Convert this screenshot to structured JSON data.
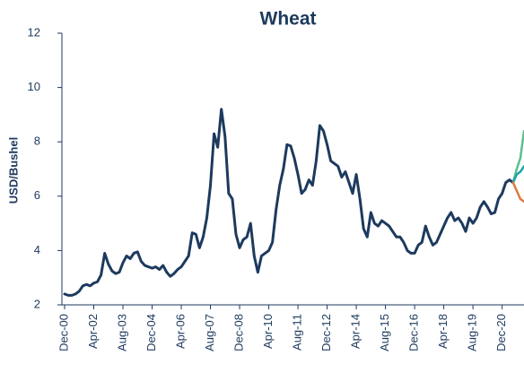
{
  "chart_data": {
    "type": "line",
    "title": "Wheat",
    "y_label": "USD/Bushel",
    "categories": [
      "Dec-00",
      null,
      null,
      null,
      null,
      null,
      null,
      null,
      "Apr-02",
      null,
      null,
      null,
      null,
      null,
      null,
      null,
      "Aug-03",
      null,
      null,
      null,
      null,
      null,
      null,
      null,
      "Dec-04",
      null,
      null,
      null,
      null,
      null,
      null,
      null,
      "Apr-06",
      null,
      null,
      null,
      null,
      null,
      null,
      null,
      "Aug-07",
      null,
      null,
      null,
      null,
      null,
      null,
      null,
      "Dec-08",
      null,
      null,
      null,
      null,
      null,
      null,
      null,
      "Apr-10",
      null,
      null,
      null,
      null,
      null,
      null,
      null,
      "Aug-11",
      null,
      null,
      null,
      null,
      null,
      null,
      null,
      "Dec-12",
      null,
      null,
      null,
      null,
      null,
      null,
      null,
      "Apr-14",
      null,
      null,
      null,
      null,
      null,
      null,
      null,
      "Aug-15",
      null,
      null,
      null,
      null,
      null,
      null,
      null,
      "Dec-16",
      null,
      null,
      null,
      null,
      null,
      null,
      null,
      "Apr-18",
      null,
      null,
      null,
      null,
      null,
      null,
      null,
      "Aug-19",
      null,
      null,
      null,
      null,
      null,
      null,
      null,
      "Dec-20",
      null,
      null,
      null,
      null,
      null,
      null
    ],
    "series": [
      {
        "color": "#1d3a5e",
        "width": 3,
        "values": [
          2.4,
          2.35,
          2.35,
          2.4,
          2.5,
          2.7,
          2.75,
          2.7,
          2.8,
          2.85,
          3.1,
          3.9,
          3.5,
          3.25,
          3.15,
          3.2,
          3.55,
          3.8,
          3.7,
          3.9,
          3.95,
          3.6,
          3.45,
          3.4,
          3.35,
          3.4,
          3.3,
          3.45,
          3.2,
          3.05,
          3.15,
          3.3,
          3.4,
          3.6,
          3.8,
          4.65,
          4.6,
          4.1,
          4.5,
          5.2,
          6.4,
          8.3,
          7.8,
          9.2,
          8.2,
          6.1,
          5.9,
          4.6,
          4.1,
          4.4,
          4.5,
          5.0,
          3.8,
          3.2,
          3.8,
          3.9,
          4.0,
          4.3,
          5.5,
          6.4,
          7.0,
          7.9,
          7.85,
          7.4,
          6.8,
          6.1,
          6.25,
          6.6,
          6.4,
          7.3,
          8.6,
          8.4,
          7.9,
          7.3,
          7.2,
          7.1,
          6.7,
          6.9,
          6.5,
          6.1,
          6.8,
          5.9,
          4.8,
          4.5,
          5.4,
          5.0,
          4.9,
          5.1,
          5.0,
          4.9,
          4.7,
          4.5,
          4.5,
          4.3,
          4.0,
          3.9,
          3.9,
          4.2,
          4.3,
          4.9,
          4.5,
          4.2,
          4.3,
          4.6,
          4.9,
          5.2,
          5.4,
          5.1,
          5.2,
          5.0,
          4.7,
          5.2,
          5.0,
          5.2,
          5.6,
          5.8,
          5.6,
          5.35,
          5.4,
          5.9,
          6.1,
          6.5,
          6.6,
          6.5,
          null,
          null,
          null
        ]
      },
      {
        "color": "#5cbf8f",
        "width": 2.5,
        "values": [
          null,
          null,
          null,
          null,
          null,
          null,
          null,
          null,
          null,
          null,
          null,
          null,
          null,
          null,
          null,
          null,
          null,
          null,
          null,
          null,
          null,
          null,
          null,
          null,
          null,
          null,
          null,
          null,
          null,
          null,
          null,
          null,
          null,
          null,
          null,
          null,
          null,
          null,
          null,
          null,
          null,
          null,
          null,
          null,
          null,
          null,
          null,
          null,
          null,
          null,
          null,
          null,
          null,
          null,
          null,
          null,
          null,
          null,
          null,
          null,
          null,
          null,
          null,
          null,
          null,
          null,
          null,
          null,
          null,
          null,
          null,
          null,
          null,
          null,
          null,
          null,
          null,
          null,
          null,
          null,
          null,
          null,
          null,
          null,
          null,
          null,
          null,
          null,
          null,
          null,
          null,
          null,
          null,
          null,
          null,
          null,
          null,
          null,
          null,
          null,
          null,
          null,
          null,
          null,
          null,
          null,
          null,
          null,
          null,
          null,
          null,
          null,
          null,
          null,
          null,
          null,
          null,
          null,
          null,
          null,
          null,
          null,
          null,
          6.5,
          7.0,
          7.4,
          8.4
        ]
      },
      {
        "color": "#1ea3a6",
        "width": 2.5,
        "values": [
          null,
          null,
          null,
          null,
          null,
          null,
          null,
          null,
          null,
          null,
          null,
          null,
          null,
          null,
          null,
          null,
          null,
          null,
          null,
          null,
          null,
          null,
          null,
          null,
          null,
          null,
          null,
          null,
          null,
          null,
          null,
          null,
          null,
          null,
          null,
          null,
          null,
          null,
          null,
          null,
          null,
          null,
          null,
          null,
          null,
          null,
          null,
          null,
          null,
          null,
          null,
          null,
          null,
          null,
          null,
          null,
          null,
          null,
          null,
          null,
          null,
          null,
          null,
          null,
          null,
          null,
          null,
          null,
          null,
          null,
          null,
          null,
          null,
          null,
          null,
          null,
          null,
          null,
          null,
          null,
          null,
          null,
          null,
          null,
          null,
          null,
          null,
          null,
          null,
          null,
          null,
          null,
          null,
          null,
          null,
          null,
          null,
          null,
          null,
          null,
          null,
          null,
          null,
          null,
          null,
          null,
          null,
          null,
          null,
          null,
          null,
          null,
          null,
          null,
          null,
          null,
          null,
          null,
          null,
          null,
          null,
          null,
          null,
          6.5,
          6.8,
          6.9,
          7.1
        ]
      },
      {
        "color": "#e07a3e",
        "width": 2.5,
        "values": [
          null,
          null,
          null,
          null,
          null,
          null,
          null,
          null,
          null,
          null,
          null,
          null,
          null,
          null,
          null,
          null,
          null,
          null,
          null,
          null,
          null,
          null,
          null,
          null,
          null,
          null,
          null,
          null,
          null,
          null,
          null,
          null,
          null,
          null,
          null,
          null,
          null,
          null,
          null,
          null,
          null,
          null,
          null,
          null,
          null,
          null,
          null,
          null,
          null,
          null,
          null,
          null,
          null,
          null,
          null,
          null,
          null,
          null,
          null,
          null,
          null,
          null,
          null,
          null,
          null,
          null,
          null,
          null,
          null,
          null,
          null,
          null,
          null,
          null,
          null,
          null,
          null,
          null,
          null,
          null,
          null,
          null,
          null,
          null,
          null,
          null,
          null,
          null,
          null,
          null,
          null,
          null,
          null,
          null,
          null,
          null,
          null,
          null,
          null,
          null,
          null,
          null,
          null,
          null,
          null,
          null,
          null,
          null,
          null,
          null,
          null,
          null,
          null,
          null,
          null,
          null,
          null,
          null,
          null,
          null,
          null,
          null,
          null,
          6.5,
          6.2,
          5.9,
          5.8
        ]
      }
    ],
    "ylim": [
      2,
      12
    ],
    "yticks": [
      2,
      4,
      6,
      8,
      10,
      12
    ],
    "grid": false
  }
}
